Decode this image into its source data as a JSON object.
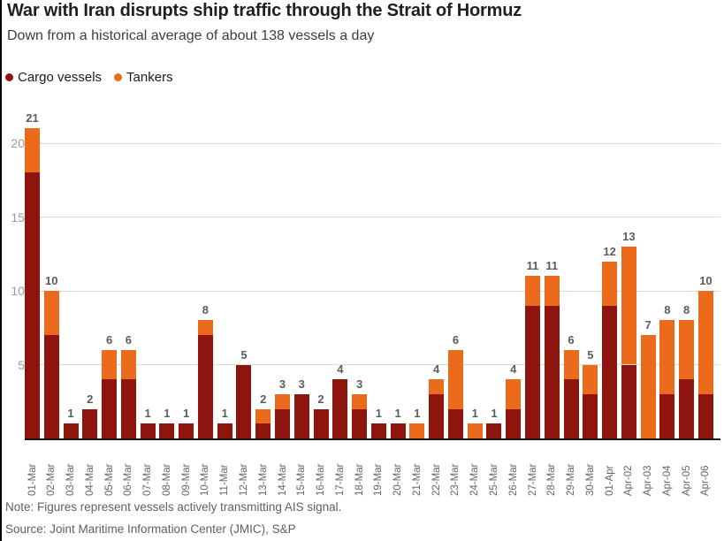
{
  "header": {
    "title": "War with Iran disrupts ship traffic through the Strait of Hormuz",
    "subtitle": "Down from a historical average of about 138 vessels a day"
  },
  "legend": {
    "items": [
      {
        "label": "Cargo vessels",
        "color": "#8E140E"
      },
      {
        "label": "Tankers",
        "color": "#EB6A1C"
      }
    ]
  },
  "chart_data": {
    "type": "bar",
    "stacked": true,
    "categories": [
      "01-Mar",
      "02-Mar",
      "03-Mar",
      "04-Mar",
      "05-Mar",
      "06-Mar",
      "07-Mar",
      "08-Mar",
      "09-Mar",
      "10-Mar",
      "11-Mar",
      "12-Mar",
      "13-Mar",
      "14-Mar",
      "15-Mar",
      "16-Mar",
      "17-Mar",
      "18-Mar",
      "19-Mar",
      "20-Mar",
      "21-Mar",
      "22-Mar",
      "23-Mar",
      "24-Mar",
      "25-Mar",
      "26-Mar",
      "27-Mar",
      "28-Mar",
      "29-Mar",
      "30-Mar",
      "01-Apr",
      "Apr-02",
      "Apr-03",
      "Apr-04",
      "Apr-05",
      "Apr-06"
    ],
    "series": [
      {
        "name": "Cargo vessels",
        "color": "#8E140E",
        "values": [
          18,
          7,
          1,
          2,
          4,
          4,
          1,
          1,
          1,
          7,
          1,
          5,
          1,
          2,
          3,
          2,
          4,
          2,
          1,
          1,
          0,
          3,
          2,
          0,
          1,
          2,
          9,
          9,
          4,
          3,
          9,
          5,
          0,
          3,
          4,
          3
        ]
      },
      {
        "name": "Tankers",
        "color": "#EB6A1C",
        "values": [
          3,
          3,
          0,
          0,
          2,
          2,
          0,
          0,
          0,
          1,
          0,
          0,
          1,
          1,
          0,
          0,
          0,
          1,
          0,
          0,
          1,
          1,
          4,
          1,
          0,
          2,
          2,
          2,
          2,
          2,
          3,
          8,
          7,
          5,
          4,
          7
        ]
      }
    ],
    "totals": [
      21,
      10,
      1,
      2,
      6,
      6,
      1,
      1,
      1,
      8,
      1,
      5,
      2,
      3,
      3,
      2,
      4,
      3,
      1,
      1,
      1,
      4,
      6,
      1,
      1,
      4,
      11,
      11,
      6,
      5,
      12,
      13,
      7,
      8,
      8,
      10
    ],
    "y_ticks": [
      5,
      10,
      15,
      20
    ],
    "ylim": [
      0,
      21
    ],
    "grid": true,
    "legend_position": "top-left",
    "title": "War with Iran disrupts ship traffic through the Strait of Hormuz",
    "xlabel": "",
    "ylabel": ""
  },
  "footer": {
    "note": "Note: Figures represent vessels actively transmitting AIS signal.",
    "source": "Source: Joint Maritime Information Center (JMIC), S&P"
  }
}
